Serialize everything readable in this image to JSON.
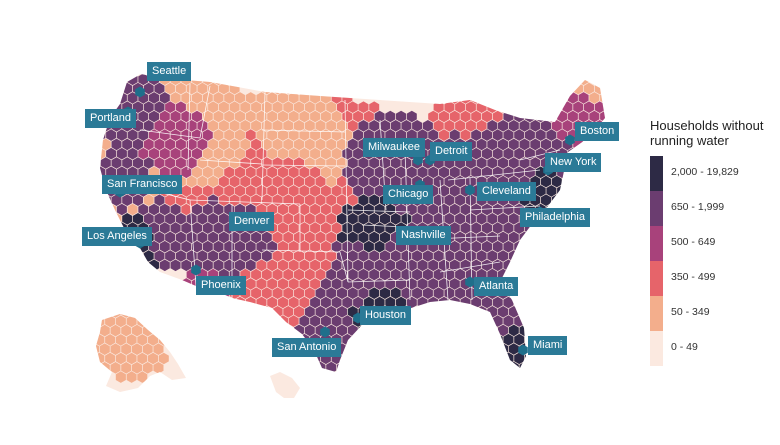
{
  "legend": {
    "title_line1": "Households without",
    "title_line2": "running water",
    "bins": [
      {
        "label": "2,000 - 19,829",
        "color": "#2d2a45"
      },
      {
        "label": "650 - 1,999",
        "color": "#6b3d70"
      },
      {
        "label": "500 - 649",
        "color": "#a8427b"
      },
      {
        "label": "350 - 499",
        "color": "#e6646a"
      },
      {
        "label": "50 - 349",
        "color": "#f3ae8c"
      },
      {
        "label": "0 - 49",
        "color": "#fbe9e0"
      }
    ]
  },
  "cities": {
    "seattle": "Seattle",
    "portland": "Portland",
    "san_francisco": "San Francisco",
    "los_angeles": "Los Angeles",
    "phoenix": "Phoenix",
    "denver": "Denver",
    "san_antonio": "San Antonio",
    "houston": "Houston",
    "milwaukee": "Milwaukee",
    "chicago": "Chicago",
    "detroit": "Detroit",
    "cleveland": "Cleveland",
    "nashville": "Nashville",
    "atlanta": "Atlanta",
    "miami": "Miami",
    "philadelphia": "Philadelphia",
    "new_york": "New York",
    "boston": "Boston"
  },
  "map_colors": {
    "state_border": "#ffffff",
    "city_marker": "#1f6f8b"
  }
}
